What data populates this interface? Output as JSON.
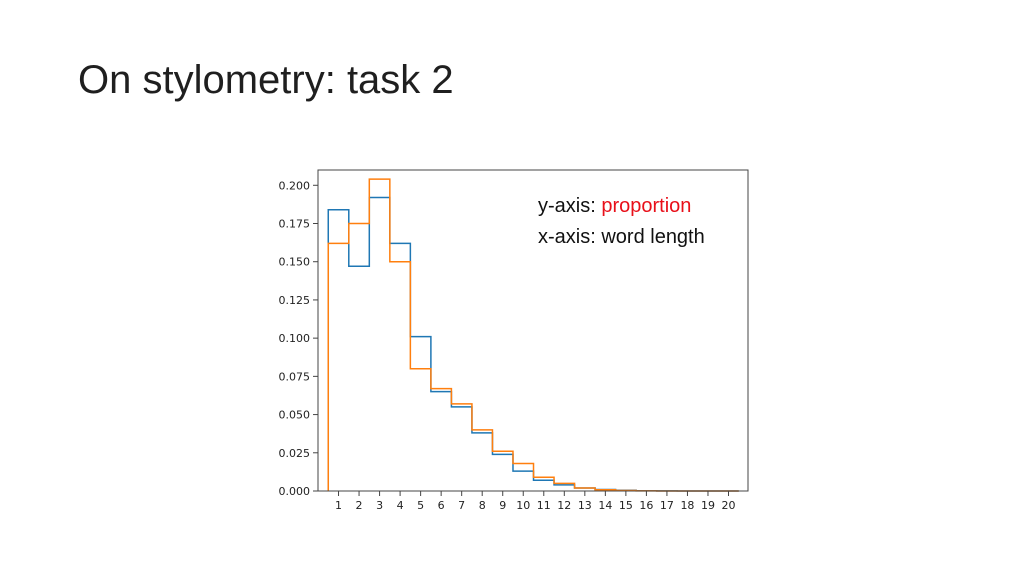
{
  "slide": {
    "title": "On stylometry: task 2"
  },
  "chart_data": {
    "type": "line",
    "subtype": "step-histogram",
    "title": "",
    "xlabel": "",
    "ylabel": "",
    "x_categories": [
      "1",
      "2",
      "3",
      "4",
      "5",
      "6",
      "7",
      "8",
      "9",
      "10",
      "11",
      "12",
      "13",
      "14",
      "15",
      "16",
      "17",
      "18",
      "19",
      "20"
    ],
    "ylim": [
      0.0,
      0.21
    ],
    "xlim": [
      0.0,
      20.95
    ],
    "y_ticks": [
      "0.000",
      "0.025",
      "0.050",
      "0.075",
      "0.100",
      "0.125",
      "0.150",
      "0.175",
      "0.200"
    ],
    "grid": false,
    "series": [
      {
        "color": "#1f77b4",
        "values": [
          0.184,
          0.147,
          0.192,
          0.162,
          0.101,
          0.065,
          0.055,
          0.038,
          0.024,
          0.013,
          0.007,
          0.004,
          0.002,
          0.001,
          0.0005,
          0.0002,
          0.0001,
          0.0,
          0.0,
          0.0
        ]
      },
      {
        "color": "#ff7f0e",
        "values": [
          0.162,
          0.175,
          0.204,
          0.15,
          0.08,
          0.067,
          0.057,
          0.04,
          0.026,
          0.018,
          0.009,
          0.005,
          0.002,
          0.0008,
          0.0003,
          0.0001,
          0.0,
          0.0,
          0.0,
          0.0
        ]
      }
    ],
    "annotations": {
      "line1_prefix": "y-axis: ",
      "line1_accent": "proportion",
      "line1_accent_color": "#e8101a",
      "line2": "x-axis: word length"
    }
  }
}
